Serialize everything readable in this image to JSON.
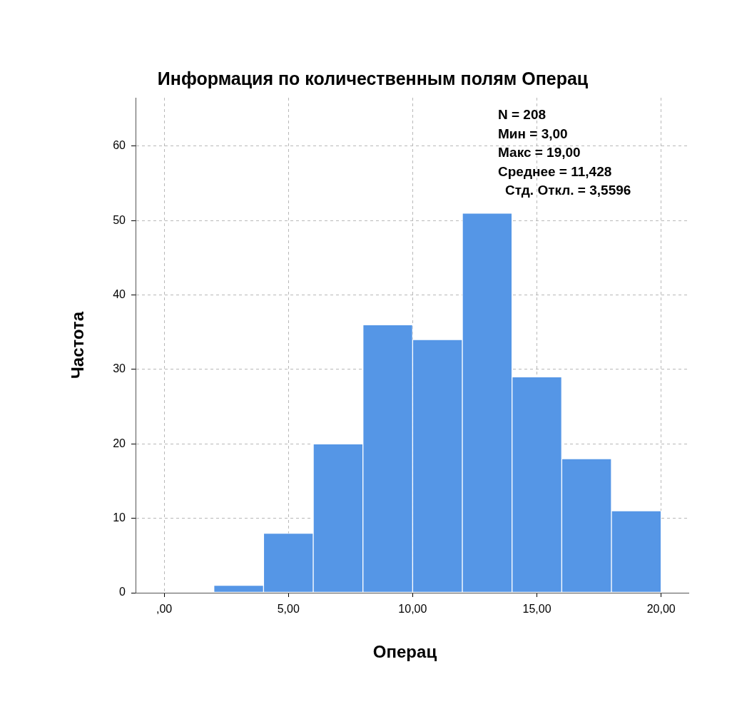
{
  "chart_data": {
    "type": "histogram",
    "title": "Информация по количественным полям Операц",
    "xlabel": "Операц",
    "ylabel": "Частота",
    "bins": [
      0,
      2,
      4,
      6,
      8,
      10,
      12,
      14,
      16,
      18,
      20
    ],
    "values": [
      0,
      1,
      8,
      20,
      36,
      34,
      51,
      29,
      18,
      11
    ],
    "color": "#5596e6",
    "xlim": [
      -1.15,
      21.1
    ],
    "xticks": [
      {
        "value": 0,
        "label": ",00"
      },
      {
        "value": 5,
        "label": "5,00"
      },
      {
        "value": 10,
        "label": "10,00"
      },
      {
        "value": 15,
        "label": "15,00"
      },
      {
        "value": 20,
        "label": "20,00"
      }
    ],
    "ylim": [
      0,
      66.5
    ],
    "yticks": [
      0,
      10,
      20,
      30,
      40,
      50,
      60
    ],
    "grid": true,
    "legend": false,
    "annotations": [
      "N = 208",
      "Мин = 3,00",
      "Макс = 19,00",
      "Среднее = 11,428",
      "Стд. Откл. = 3,5596"
    ]
  }
}
